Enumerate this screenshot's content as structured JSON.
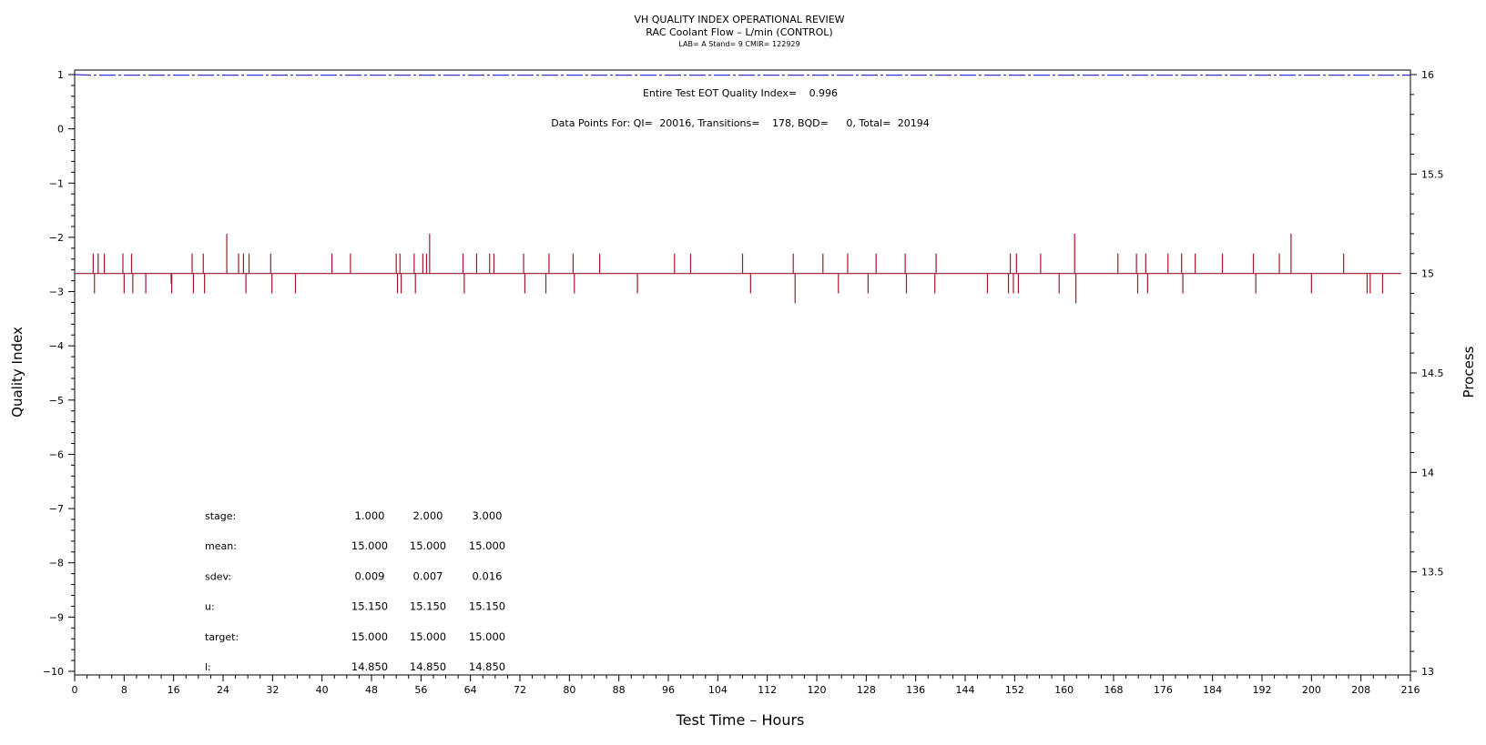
{
  "chart_data": {
    "type": "line",
    "title": "VH QUALITY INDEX OPERATIONAL REVIEW",
    "subtitle": "RAC Coolant Flow – L/min (CONTROL)",
    "subtitle2": "LAB= A Stand= 9 CMIR= 122929",
    "xlabel": "Test Time – Hours",
    "ylabel": "Quality Index",
    "y2label": "Process",
    "xlim": [
      0,
      216
    ],
    "ylim": [
      -10,
      1
    ],
    "y2lim": [
      13,
      16
    ],
    "x_ticks": [
      0,
      8,
      16,
      24,
      32,
      40,
      48,
      56,
      64,
      72,
      80,
      88,
      96,
      104,
      112,
      120,
      128,
      136,
      144,
      152,
      160,
      168,
      176,
      184,
      192,
      200,
      208,
      216
    ],
    "y_ticks": [
      1,
      0,
      -1,
      -2,
      -3,
      -4,
      -5,
      -6,
      -7,
      -8,
      -9,
      -10
    ],
    "y_tick_labels": [
      "1",
      "0",
      "−1",
      "−2",
      "−3",
      "−4",
      "−5",
      "−6",
      "−7",
      "−8",
      "−9",
      "−10"
    ],
    "y2_ticks": [
      16,
      15.5,
      15,
      14.5,
      14,
      13.5,
      13
    ],
    "colors": {
      "quality_index": "#3333cc",
      "process": "#a0182e"
    },
    "series": [
      {
        "style": "dash-dot",
        "axis": "left",
        "x": [
          0,
          2.5,
          216
        ],
        "y": [
          1.0,
          0.99,
          0.99
        ]
      },
      {
        "style": "solid",
        "axis": "right",
        "baseline": 15.0,
        "spikes": [
          [
            3.0,
            15.1
          ],
          [
            3.2,
            14.9
          ],
          [
            3.8,
            15.1
          ],
          [
            4.8,
            15.1
          ],
          [
            7.8,
            15.1
          ],
          [
            8.0,
            14.9
          ],
          [
            9.2,
            15.1
          ],
          [
            9.4,
            14.9
          ],
          [
            11.5,
            14.9
          ],
          [
            15.6,
            14.95
          ],
          [
            15.7,
            14.9
          ],
          [
            19.0,
            15.1
          ],
          [
            19.2,
            14.9
          ],
          [
            20.8,
            15.1
          ],
          [
            21.0,
            14.9
          ],
          [
            24.6,
            15.2
          ],
          [
            26.5,
            15.1
          ],
          [
            27.3,
            15.1
          ],
          [
            27.7,
            14.9
          ],
          [
            28.2,
            15.1
          ],
          [
            31.7,
            15.1
          ],
          [
            31.9,
            14.9
          ],
          [
            35.7,
            14.9
          ],
          [
            41.6,
            15.1
          ],
          [
            44.6,
            15.1
          ],
          [
            52.0,
            15.1
          ],
          [
            52.2,
            14.9
          ],
          [
            52.6,
            15.1
          ],
          [
            52.8,
            14.9
          ],
          [
            54.9,
            15.1
          ],
          [
            55.1,
            14.9
          ],
          [
            56.3,
            15.1
          ],
          [
            56.9,
            15.1
          ],
          [
            57.4,
            15.2
          ],
          [
            62.8,
            15.1
          ],
          [
            63.0,
            14.9
          ],
          [
            65.0,
            15.1
          ],
          [
            67.1,
            15.1
          ],
          [
            67.8,
            15.1
          ],
          [
            72.6,
            15.1
          ],
          [
            72.8,
            14.9
          ],
          [
            76.7,
            15.1
          ],
          [
            76.2,
            14.9
          ],
          [
            80.6,
            15.1
          ],
          [
            80.8,
            14.9
          ],
          [
            84.9,
            15.1
          ],
          [
            91.0,
            14.9
          ],
          [
            97.0,
            15.1
          ],
          [
            99.6,
            15.1
          ],
          [
            108.0,
            15.1
          ],
          [
            109.3,
            14.9
          ],
          [
            116.2,
            15.1
          ],
          [
            116.5,
            14.85
          ],
          [
            121.0,
            15.1
          ],
          [
            123.5,
            14.9
          ],
          [
            125.0,
            15.1
          ],
          [
            128.3,
            14.9
          ],
          [
            129.6,
            15.1
          ],
          [
            134.3,
            15.1
          ],
          [
            134.5,
            14.9
          ],
          [
            139.3,
            15.1
          ],
          [
            139.1,
            14.9
          ],
          [
            147.6,
            14.9
          ],
          [
            151.0,
            14.9
          ],
          [
            151.3,
            15.1
          ],
          [
            151.8,
            14.9
          ],
          [
            152.3,
            15.1
          ],
          [
            152.6,
            14.9
          ],
          [
            156.2,
            15.1
          ],
          [
            159.2,
            14.9
          ],
          [
            161.7,
            15.2
          ],
          [
            161.9,
            14.85
          ],
          [
            168.7,
            15.1
          ],
          [
            171.7,
            15.1
          ],
          [
            171.9,
            14.9
          ],
          [
            173.2,
            15.1
          ],
          [
            173.5,
            14.9
          ],
          [
            176.8,
            15.1
          ],
          [
            179.0,
            15.1
          ],
          [
            179.2,
            14.9
          ],
          [
            181.2,
            15.1
          ],
          [
            185.6,
            15.1
          ],
          [
            190.6,
            15.1
          ],
          [
            191.0,
            14.9
          ],
          [
            194.8,
            15.1
          ],
          [
            196.7,
            15.2
          ],
          [
            200.0,
            14.9
          ],
          [
            205.2,
            15.1
          ],
          [
            209.0,
            14.9
          ],
          [
            209.5,
            14.9
          ],
          [
            211.5,
            14.9
          ]
        ]
      }
    ],
    "annotations": {
      "qi_label": "Entire Test EOT Quality Index=",
      "qi_value": "0.996",
      "points_label": "Data Points For: QI=",
      "points_qi": "20016",
      "transitions_label": "Transitions=",
      "transitions": "178",
      "bqd_label": "BQD=",
      "bqd": "0",
      "total_label": "Total=",
      "total": "20194"
    },
    "stage_table": {
      "rows": [
        {
          "label": "stage:",
          "values": [
            "1.000",
            "2.000",
            "3.000"
          ]
        },
        {
          "label": "mean:",
          "values": [
            "15.000",
            "15.000",
            "15.000"
          ]
        },
        {
          "label": "sdev:",
          "values": [
            "0.009",
            "0.007",
            "0.016"
          ]
        },
        {
          "label": "u:",
          "values": [
            "15.150",
            "15.150",
            "15.150"
          ]
        },
        {
          "label": "target:",
          "values": [
            "15.000",
            "15.000",
            "15.000"
          ]
        },
        {
          "label": "l:",
          "values": [
            "14.850",
            "14.850",
            "14.850"
          ]
        }
      ]
    }
  }
}
